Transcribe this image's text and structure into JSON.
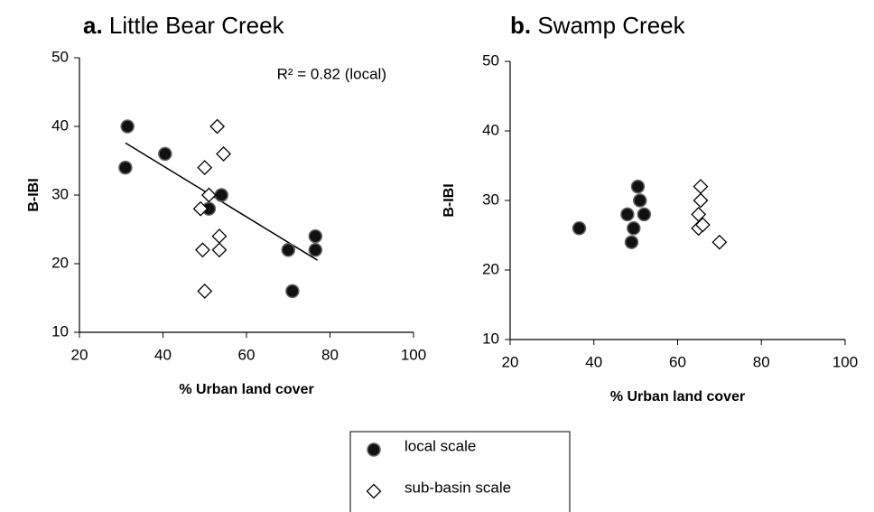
{
  "chart_data": [
    {
      "type": "scatter",
      "panel_label": "a.",
      "title": "Little Bear Creek",
      "x_label": "% Urban land cover",
      "y_label": "B-IBI",
      "annotation": "R² = 0.82 (local)",
      "xlim": [
        20,
        100
      ],
      "xticks": [
        20,
        40,
        60,
        80,
        100
      ],
      "ylim": [
        10,
        50
      ],
      "yticks": [
        10,
        20,
        30,
        40,
        50
      ],
      "series": [
        {
          "name": "local scale",
          "marker": "circle",
          "color": "#111111",
          "x": [
            31.5,
            31,
            40.5,
            51,
            54,
            70,
            71,
            76.5,
            76.5
          ],
          "values": [
            40,
            34,
            36,
            28,
            30,
            22,
            16,
            24,
            22
          ]
        },
        {
          "name": "sub-basin scale",
          "marker": "diamond",
          "color": "#000000",
          "x": [
            53,
            54.5,
            50,
            51,
            49,
            49.5,
            53.5,
            53.5,
            50
          ],
          "values": [
            40,
            36,
            34,
            30,
            28,
            22,
            24,
            22,
            16
          ]
        }
      ],
      "trendline": {
        "color": "#000000",
        "x": [
          31,
          77
        ],
        "y": [
          37.6,
          20.5
        ]
      }
    },
    {
      "type": "scatter",
      "panel_label": "b.",
      "title": "Swamp Creek",
      "x_label": "% Urban land cover",
      "y_label": "B-IBI",
      "xlim": [
        20,
        100
      ],
      "xticks": [
        20,
        40,
        60,
        80,
        100
      ],
      "ylim": [
        10,
        50
      ],
      "yticks": [
        10,
        20,
        30,
        40,
        50
      ],
      "series": [
        {
          "marker": "circle",
          "color": "#111111",
          "x": [
            36.5,
            48,
            49,
            49.5,
            50.5,
            51,
            52
          ],
          "values": [
            26,
            28,
            24,
            26,
            32,
            30,
            28
          ]
        },
        {
          "marker": "diamond",
          "color": "#000000",
          "x": [
            65.5,
            65.5,
            65,
            65,
            66,
            70
          ],
          "values": [
            32,
            30,
            28,
            26,
            26.5,
            24
          ]
        }
      ]
    }
  ]
}
